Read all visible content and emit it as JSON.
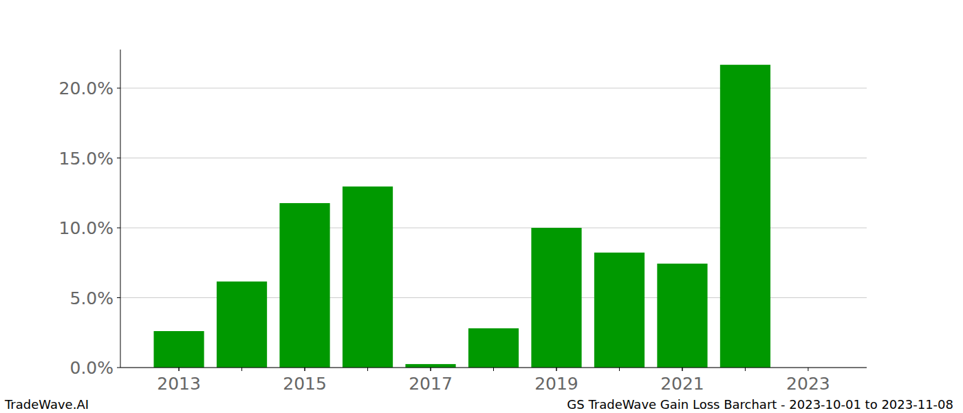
{
  "chart_data": {
    "type": "bar",
    "title": "GS TradeWave Gain Loss Barchart - 2023-10-01 to 2023-11-08",
    "annotations": [
      "TradeWave.AI"
    ],
    "x": [
      2013,
      2014,
      2015,
      2016,
      2017,
      2018,
      2019,
      2020,
      2021,
      2022
    ],
    "values": [
      2.61,
      6.16,
      11.77,
      12.96,
      0.25,
      2.81,
      10.0,
      8.23,
      7.44,
      21.67
    ],
    "color": "#009900",
    "xlim": [
      2012.07,
      2023.93
    ],
    "xticks": [
      2013,
      2015,
      2017,
      2019,
      2021,
      2023
    ],
    "ylim": [
      0,
      22.76
    ],
    "yticks": [
      {
        "value": 0,
        "label": "0.0%"
      },
      {
        "value": 5,
        "label": "5.0%"
      },
      {
        "value": 10,
        "label": "10.0%"
      },
      {
        "value": 15,
        "label": "15.0%"
      },
      {
        "value": 20,
        "label": "20.0%"
      }
    ],
    "grid": true
  }
}
